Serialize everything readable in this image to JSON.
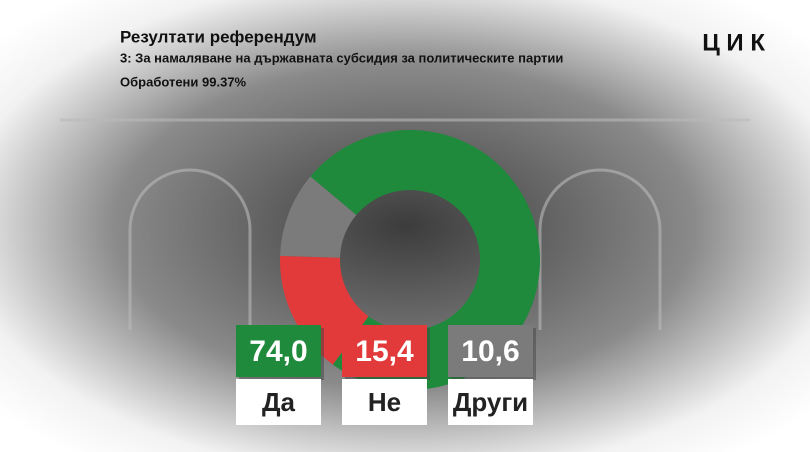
{
  "chart_data": {
    "type": "donut",
    "title": "Резултати референдум",
    "subtitle": "3: За намаляване на държавната субсидия за политическите партии",
    "annotation": "Обработени 99.37%",
    "brand": "Ц И К",
    "categories": [
      "Да",
      "Не",
      "Други"
    ],
    "values": [
      74.0,
      15.4,
      10.6
    ],
    "value_labels": [
      "74,0",
      "15,4",
      "10,6"
    ],
    "colors": [
      "#1f8a3b",
      "#e23a3a",
      "#7b7b7b"
    ]
  }
}
